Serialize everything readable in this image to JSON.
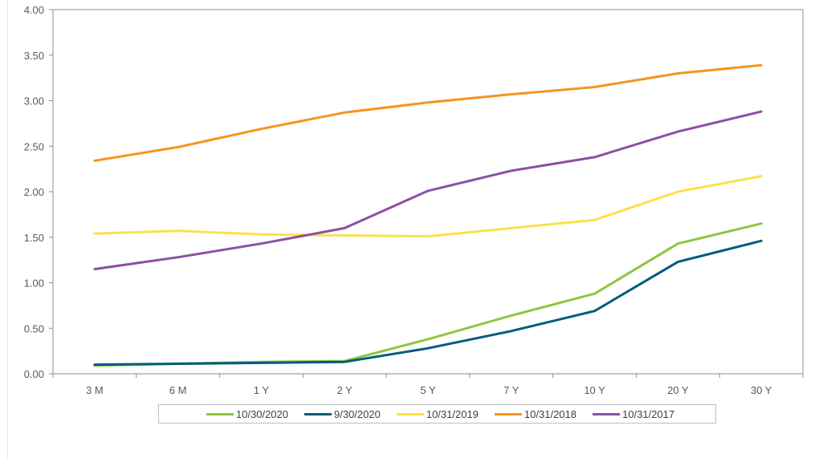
{
  "chart_data": {
    "type": "line",
    "title": "",
    "xlabel": "",
    "ylabel": "",
    "categories": [
      "3 M",
      "6 M",
      "1 Y",
      "2 Y",
      "5 Y",
      "7 Y",
      "10 Y",
      "20 Y",
      "30 Y"
    ],
    "y_ticks": [
      "0.00",
      "0.50",
      "1.00",
      "1.50",
      "2.00",
      "2.50",
      "3.00",
      "3.50",
      "4.00"
    ],
    "ylim": [
      0,
      4
    ],
    "grid": false,
    "legend_position": "bottom",
    "series": [
      {
        "name": "10/30/2020",
        "color": "#8dc63f",
        "values": [
          0.09,
          0.11,
          0.13,
          0.14,
          0.38,
          0.64,
          0.88,
          1.43,
          1.65
        ]
      },
      {
        "name": "9/30/2020",
        "color": "#005b7f",
        "values": [
          0.1,
          0.11,
          0.12,
          0.13,
          0.28,
          0.47,
          0.69,
          1.23,
          1.46
        ]
      },
      {
        "name": "10/31/2019",
        "color": "#fbe14b",
        "values": [
          1.54,
          1.57,
          1.53,
          1.52,
          1.51,
          1.6,
          1.69,
          2.0,
          2.17
        ]
      },
      {
        "name": "10/31/2018",
        "color": "#f7941d",
        "values": [
          2.34,
          2.49,
          2.69,
          2.87,
          2.98,
          3.07,
          3.15,
          3.3,
          3.39
        ]
      },
      {
        "name": "10/31/2017",
        "color": "#8e4fa3",
        "values": [
          1.15,
          1.28,
          1.43,
          1.6,
          2.01,
          2.23,
          2.38,
          2.66,
          2.88
        ]
      }
    ]
  }
}
